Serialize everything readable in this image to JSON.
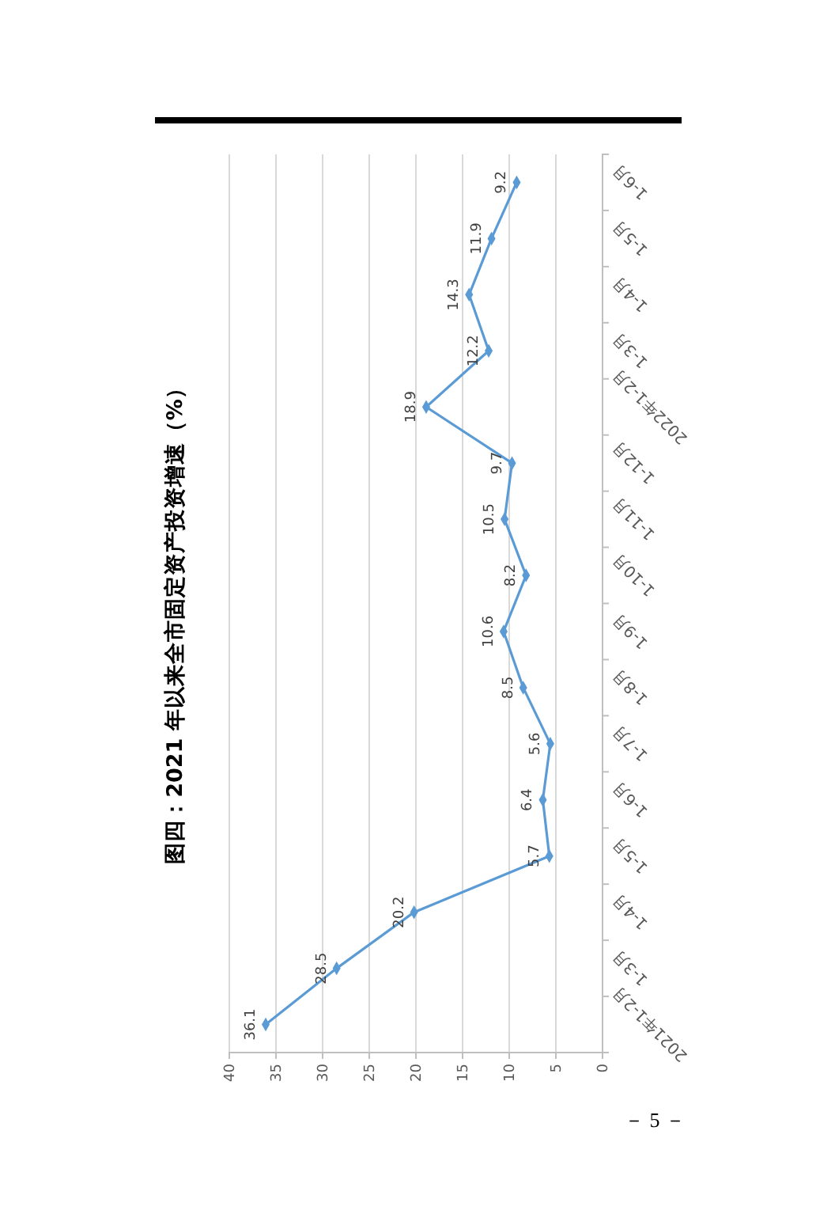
{
  "chart_data": {
    "type": "line",
    "title": "图四：2021 年以来全市固定资产投资增速（%）",
    "orientation": "horizontal",
    "categories": [
      "1-6月",
      "1-5月",
      "1-4月",
      "1-3月",
      "2022年1-2月",
      "1-12月",
      "1-11月",
      "1-10月",
      "1-9月",
      "1-8月",
      "1-7月",
      "1-6月",
      "1-5月",
      "1-4月",
      "1-3月",
      "2021年1-2月"
    ],
    "values": [
      9.2,
      11.9,
      14.3,
      12.2,
      18.9,
      9.7,
      10.5,
      8.2,
      10.6,
      8.5,
      5.6,
      6.4,
      5.7,
      20.2,
      28.5,
      36.1
    ],
    "color": "#5b9bd5",
    "xlim": [
      40,
      0
    ],
    "xticks": [
      0,
      5,
      10,
      15,
      20,
      25,
      30,
      35,
      40
    ],
    "grid": "x",
    "marker": "diamond",
    "data_labels": true,
    "annotations": [
      "－ 5 －"
    ]
  }
}
